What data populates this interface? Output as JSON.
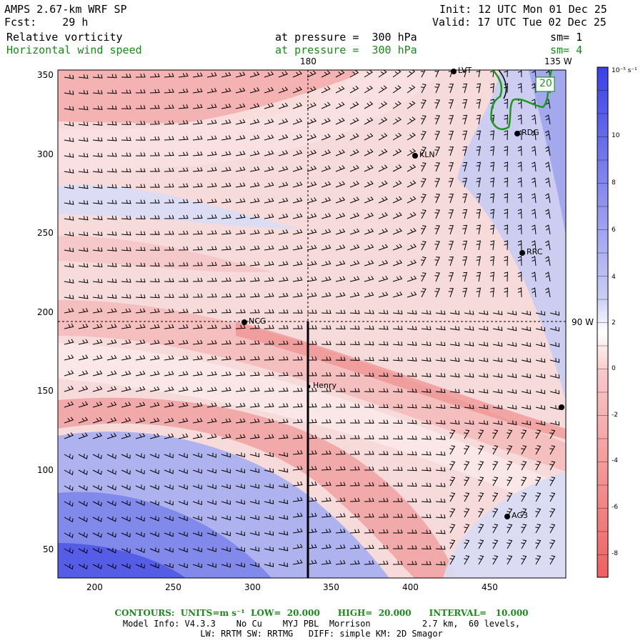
{
  "header": {
    "model": "AMPS 2.67-km WRF SP",
    "fcst": "Fcst:    29 h",
    "init": "Init: 12 UTC Mon 01 Dec 25",
    "valid": "Valid: 17 UTC Tue 02 Dec 25",
    "field1": "Relative vorticity",
    "field1_level": "at pressure =  300 hPa",
    "field1_sm": "sm= 1",
    "field2": "Horizontal wind speed",
    "field2_level": "at pressure =  300 hPa",
    "field2_sm": "sm= 4"
  },
  "map": {
    "meridian_180": "180",
    "meridian_135w": "135 W",
    "meridian_90w": "90 W",
    "contour_label": "20",
    "x_ticks": [
      "200",
      "250",
      "300",
      "350",
      "400",
      "450"
    ],
    "y_ticks": [
      "350",
      "300",
      "250",
      "200",
      "150",
      "100",
      "50"
    ],
    "stations": [
      {
        "name": "LVT"
      },
      {
        "name": "RDG"
      },
      {
        "name": "KLN"
      },
      {
        "name": "RRC"
      },
      {
        "name": "NCG"
      },
      {
        "name": "Henry"
      },
      {
        "name": "AG3"
      }
    ]
  },
  "colorbar": {
    "unit": "10⁻⁵ s⁻¹",
    "labels": [
      "10",
      "8",
      "6",
      "4",
      "2",
      "0",
      "-2",
      "-4",
      "-6",
      "-8"
    ],
    "colors": {
      "positive": "#4a50e6",
      "negative": "#f06a6a",
      "neutral": "#ffffff"
    }
  },
  "footer": {
    "contours": "CONTOURS:  UNITS=m s⁻¹  LOW=  20.000      HIGH=  20.000      INTERVAL=   10.000",
    "model_info": "Model Info: V4.3.3    No Cu    MYJ PBL  Morrison          2.7 km,  60 levels,",
    "model_info2": "LW: RRTM SW: RRTMG   DIFF: simple KM: 2D Smagor"
  }
}
